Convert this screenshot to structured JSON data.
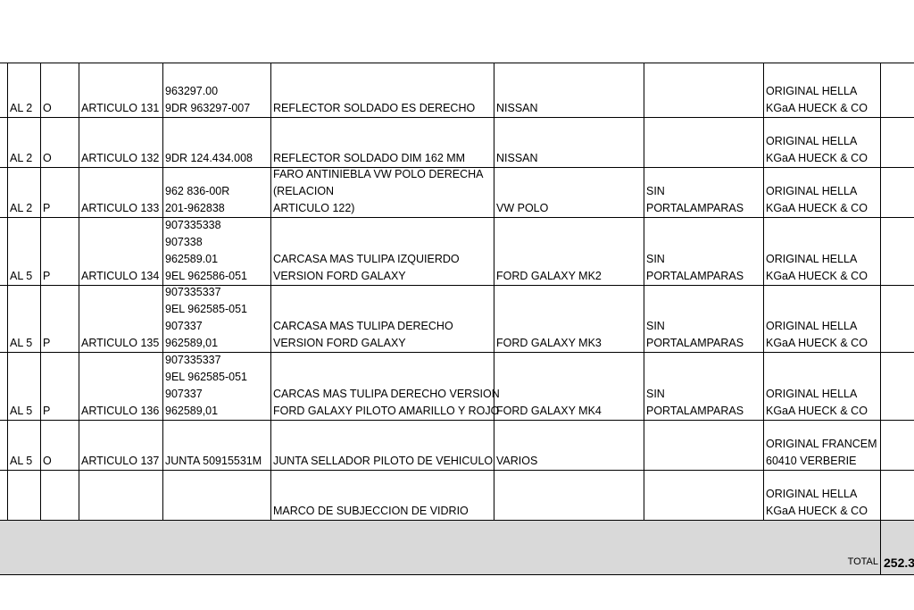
{
  "table": {
    "rows": [
      [
        [
          "AL 2"
        ],
        [
          "O"
        ],
        [
          "ARTICULO 131"
        ],
        [
          "963297.00",
          "9DR 963297-007"
        ],
        [
          "REFLECTOR SOLDADO  ES DERECHO"
        ],
        [
          "NISSAN"
        ],
        [],
        [
          "ORIGINAL HELLA",
          "KGaA HUECK & CO"
        ]
      ],
      [
        [
          "AL 2"
        ],
        [
          "O"
        ],
        [
          "ARTICULO 132"
        ],
        [
          "9DR 124.434.008"
        ],
        [
          "REFLECTOR SOLDADO DIM 162 MM"
        ],
        [
          "NISSAN"
        ],
        [],
        [
          "ORIGINAL HELLA",
          "KGaA HUECK & CO"
        ]
      ],
      [
        [
          "AL 2"
        ],
        [
          "P"
        ],
        [
          "ARTICULO 133"
        ],
        [
          "962 836-00R",
          "201-962838"
        ],
        [
          "FARO ANTINIEBLA VW POLO  DERECHA",
          "(RELACION",
          "ARTICULO 122)"
        ],
        [
          "VW POLO"
        ],
        [
          "SIN",
          "PORTALAMPARAS"
        ],
        [
          "ORIGINAL HELLA",
          "KGaA HUECK & CO"
        ]
      ],
      [
        [
          "AL 5"
        ],
        [
          "P"
        ],
        [
          "ARTICULO 134"
        ],
        [
          "907335338",
          "907338",
          "962589.01",
          "9EL 962586-051"
        ],
        [
          "CARCASA MAS TULIPA IZQUIERDO",
          "VERSION FORD GALAXY"
        ],
        [
          "FORD GALAXY MK2"
        ],
        [
          "SIN",
          "PORTALAMPARAS"
        ],
        [
          "ORIGINAL HELLA",
          "KGaA HUECK & CO"
        ]
      ],
      [
        [
          "AL 5"
        ],
        [
          "P"
        ],
        [
          "ARTICULO 135"
        ],
        [
          "907335337",
          "9EL 962585-051",
          "907337",
          "962589,01"
        ],
        [
          "CARCASA MAS TULIPA DERECHO",
          "VERSION FORD GALAXY"
        ],
        [
          "FORD GALAXY MK3"
        ],
        [
          "SIN",
          "PORTALAMPARAS"
        ],
        [
          "ORIGINAL HELLA",
          "KGaA HUECK & CO"
        ]
      ],
      [
        [
          "AL 5"
        ],
        [
          "P"
        ],
        [
          "ARTICULO 136"
        ],
        [
          "907335337",
          "9EL 962585-051",
          "907337",
          "962589,01"
        ],
        [
          "CARCAS MAS TULIPA DERECHO VERSION",
          "FORD GALAXY PILOTO AMARILLO Y ROJO"
        ],
        [
          "FORD GALAXY MK4"
        ],
        [
          "SIN",
          "PORTALAMPARAS"
        ],
        [
          "ORIGINAL HELLA",
          "KGaA HUECK & CO"
        ]
      ],
      [
        [
          "AL 5"
        ],
        [
          "O"
        ],
        [
          "ARTICULO 137"
        ],
        [
          "JUNTA 50915531M"
        ],
        [
          "JUNTA SELLADOR PILOTO DE VEHICULO"
        ],
        [
          "VARIOS"
        ],
        [],
        [
          "ORIGINAL FRANCEM",
          "60410 VERBERIE"
        ]
      ],
      [
        [],
        [],
        [],
        [],
        [
          "MARCO DE SUBJECCION DE VIDRIO"
        ],
        [],
        [],
        [
          "ORIGINAL HELLA",
          "KGaA HUECK & CO"
        ]
      ]
    ],
    "total_label": "TOTAL",
    "total_value": "252.3"
  }
}
